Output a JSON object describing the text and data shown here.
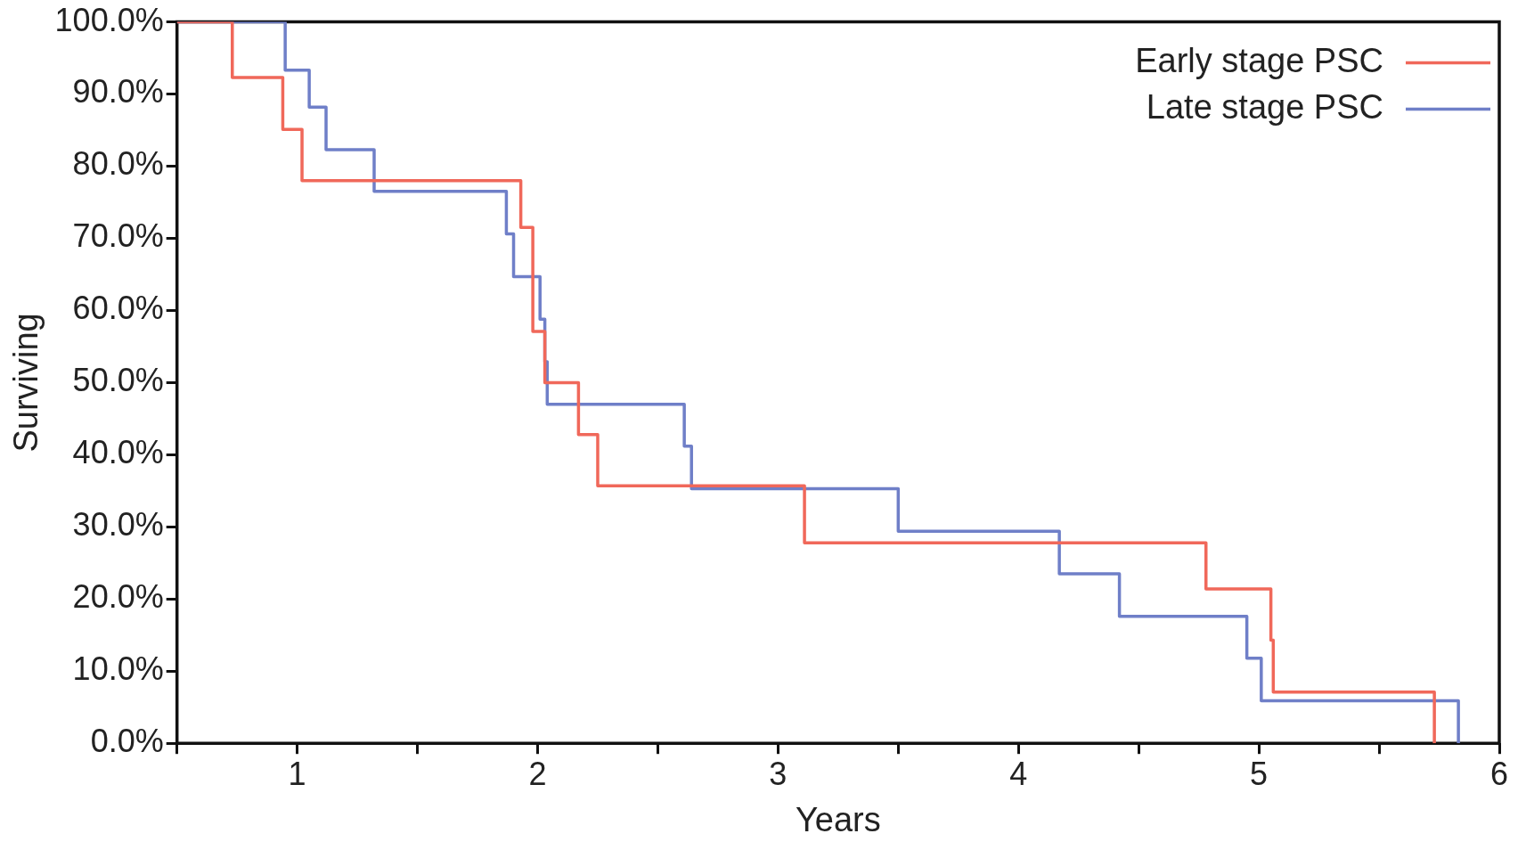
{
  "chart_data": {
    "type": "step",
    "xlabel": "Years",
    "ylabel": "Surviving",
    "xlim": [
      0.5,
      6
    ],
    "ylim": [
      0,
      100
    ],
    "xticks": [
      {
        "value": 0.5,
        "label": null
      },
      1,
      {
        "value": 1.5,
        "label": null
      },
      2,
      {
        "value": 2.5,
        "label": null
      },
      3,
      {
        "value": 3.5,
        "label": null
      },
      4,
      {
        "value": 4.5,
        "label": null
      },
      5,
      {
        "value": 5.5,
        "label": null
      },
      6
    ],
    "yticks": [
      {
        "value": 0,
        "label": "0.0%"
      },
      {
        "value": 10,
        "label": "10.0%"
      },
      {
        "value": 20,
        "label": "20.0%"
      },
      {
        "value": 30,
        "label": "30.0%"
      },
      {
        "value": 40,
        "label": "40.0%"
      },
      {
        "value": 50,
        "label": "50.0%"
      },
      {
        "value": 60,
        "label": "60.0%"
      },
      {
        "value": 70,
        "label": "70.0%"
      },
      {
        "value": 80,
        "label": "80.0%"
      },
      {
        "value": 90,
        "label": "90.0%"
      },
      {
        "value": 100,
        "label": "100.0%"
      }
    ],
    "grid": false,
    "legend": "top right",
    "marker": "none",
    "line_style": "solid",
    "series": [
      {
        "name": "Early stage PSC",
        "color": "#f0685a",
        "x": [
          0.5,
          0.73,
          0.94,
          1.02,
          1.93,
          1.98,
          2.03,
          2.17,
          2.25,
          3.11,
          4.78,
          5.05,
          5.06,
          5.73
        ],
        "values": [
          100,
          92.3,
          85.1,
          78,
          71.5,
          57.1,
          50,
          42.8,
          35.7,
          27.8,
          21.4,
          14.3,
          7.1,
          0
        ]
      },
      {
        "name": "Late stage PSC",
        "color": "#6f7fc8",
        "x": [
          0.5,
          0.95,
          1.05,
          1.12,
          1.32,
          1.87,
          1.9,
          2.01,
          2.03,
          2.04,
          2.61,
          2.64,
          3.5,
          4.17,
          4.42,
          4.95,
          5.01,
          5.83
        ],
        "values": [
          100,
          93.3,
          88.2,
          82.3,
          76.5,
          70.6,
          64.7,
          58.8,
          52.9,
          47,
          41.2,
          35.3,
          29.4,
          23.5,
          17.6,
          11.8,
          5.9,
          0
        ]
      }
    ]
  }
}
